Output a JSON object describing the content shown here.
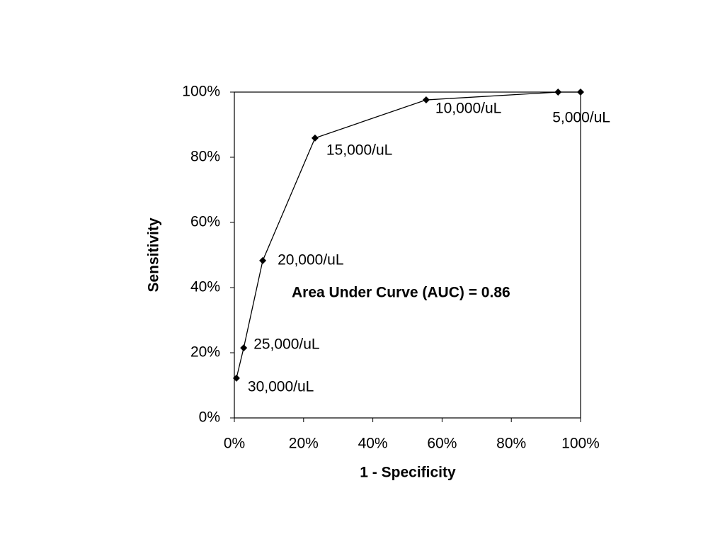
{
  "chart_data": {
    "type": "line",
    "x_label": "1 - Specificity",
    "y_label": "Sensitivity",
    "annotation": "Area Under Curve (AUC) = 0.86",
    "x": [
      0.6,
      2.7,
      8.2,
      23.3,
      55.4,
      93.5,
      100
    ],
    "series": [
      {
        "color": "#000000",
        "values": [
          12.2,
          21.5,
          48.3,
          85.9,
          97.6,
          100,
          100
        ],
        "point_labels": [
          "30,000/uL",
          "25,000/uL",
          "20,000/uL",
          "15,000/uL",
          "10,000/uL",
          "5,000/uL",
          null
        ]
      }
    ],
    "xlim": [
      0,
      100
    ],
    "ylim": [
      0,
      100
    ],
    "xticks": [
      {
        "value": 0,
        "label": "0%"
      },
      {
        "value": 20,
        "label": "20%"
      },
      {
        "value": 40,
        "label": "40%"
      },
      {
        "value": 60,
        "label": "60%"
      },
      {
        "value": 80,
        "label": "80%"
      },
      {
        "value": 100,
        "label": "100%"
      }
    ],
    "yticks": [
      {
        "value": 0,
        "label": "0%"
      },
      {
        "value": 20,
        "label": "20%"
      },
      {
        "value": 40,
        "label": "40%"
      },
      {
        "value": 60,
        "label": "60%"
      },
      {
        "value": 80,
        "label": "80%"
      },
      {
        "value": 100,
        "label": "100%"
      }
    ],
    "grid": false
  }
}
